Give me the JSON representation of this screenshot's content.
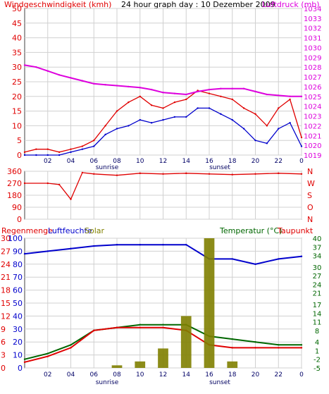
{
  "header": {
    "title_left": "Windgeschwindigkeit (kmh)",
    "title_center": "24 hour graph day : 10 Dezember 2009",
    "title_right": "Luftdruck (mb)"
  },
  "colors": {
    "background": "#ffffff",
    "frame": "#404040",
    "grid": "#d0d0d0",
    "red": "#e00000",
    "blue": "#0000cc",
    "magenta": "#dd00dd",
    "green": "#006600",
    "olive": "#808000"
  },
  "chart_data": [
    {
      "type": "line",
      "name": "wind-pressure",
      "ylim_left": [
        0,
        50
      ],
      "yticks_left": [
        "0",
        "5",
        "10",
        "15",
        "20",
        "25",
        "30",
        "35",
        "40",
        "45",
        "50"
      ],
      "ylim_right": [
        1019,
        1034
      ],
      "yticks_right": [
        "1019",
        "1020",
        "1021",
        "1022",
        "1023",
        "1024",
        "1025",
        "1026",
        "1027",
        "1028",
        "1029",
        "1030",
        "1031",
        "1032",
        "1033",
        "1034"
      ],
      "xticks": [
        "02",
        "04",
        "06",
        "08",
        "10",
        "12",
        "14",
        "16",
        "18",
        "20",
        "22",
        "0"
      ],
      "annotations": [
        "sunrise",
        "sunset"
      ],
      "x": [
        0,
        1,
        2,
        3,
        4,
        5,
        6,
        7,
        8,
        9,
        10,
        11,
        12,
        13,
        14,
        15,
        16,
        17,
        18,
        19,
        20,
        21,
        22,
        23,
        24
      ],
      "series": [
        {
          "color": "red",
          "axis": "left",
          "values": [
            1,
            2,
            2,
            1,
            2,
            3,
            5,
            10,
            15,
            18,
            20,
            17,
            16,
            18,
            19,
            22,
            21,
            20,
            19,
            16,
            14,
            10,
            16,
            19,
            6
          ]
        },
        {
          "color": "blue",
          "axis": "left",
          "values": [
            0,
            0,
            0,
            0,
            1,
            2,
            3,
            7,
            9,
            10,
            12,
            11,
            12,
            13,
            13,
            16,
            16,
            14,
            12,
            9,
            5,
            4,
            9,
            11,
            3
          ]
        },
        {
          "color": "magenta",
          "axis": "right",
          "values": [
            1028.2,
            1028.0,
            1027.6,
            1027.2,
            1026.9,
            1026.6,
            1026.3,
            1026.2,
            1026.1,
            1026.0,
            1025.9,
            1025.7,
            1025.4,
            1025.3,
            1025.2,
            1025.5,
            1025.7,
            1025.8,
            1025.8,
            1025.8,
            1025.5,
            1025.2,
            1025.1,
            1025.0,
            1025.0
          ]
        }
      ]
    },
    {
      "type": "line",
      "name": "wind-direction",
      "ylim": [
        0,
        360
      ],
      "yticks": [
        "0",
        "90",
        "180",
        "270",
        "360"
      ],
      "yticks_right": [
        "N",
        "O",
        "S",
        "W",
        "N"
      ],
      "x": [
        0,
        2,
        3,
        4,
        5,
        6,
        8,
        10,
        12,
        14,
        16,
        18,
        20,
        22,
        24
      ],
      "series": [
        {
          "color": "red",
          "values": [
            270,
            270,
            260,
            150,
            350,
            340,
            330,
            345,
            340,
            345,
            340,
            335,
            340,
            345,
            340
          ]
        }
      ]
    },
    {
      "type": "line",
      "name": "rain-humidity-solar-temperature",
      "labels": {
        "left": [
          "Regenmenge",
          "Luftfeuchte",
          "Solar"
        ],
        "right": [
          "Temperatur (°C)",
          "Taupunkt"
        ]
      },
      "ylim_left": [
        0,
        100
      ],
      "yticks_left_a": [
        "0",
        "3",
        "6",
        "9",
        "12",
        "15",
        "18",
        "21",
        "24",
        "27",
        "30"
      ],
      "yticks_left_b": [
        "0",
        "10",
        "20",
        "30",
        "40",
        "50",
        "60",
        "70",
        "80",
        "90",
        "100"
      ],
      "ylim_right": [
        -5,
        40
      ],
      "yticks_right": [
        "-5",
        "-2",
        "1",
        "4",
        "8",
        "11",
        "14",
        "17",
        "21",
        "24",
        "27",
        "30",
        "34",
        "37",
        "40"
      ],
      "xticks": [
        "02",
        "04",
        "06",
        "08",
        "10",
        "12",
        "14",
        "16",
        "18",
        "20",
        "22",
        "0"
      ],
      "annotations": [
        "sunrise",
        "sunset"
      ],
      "x": [
        0,
        2,
        4,
        6,
        8,
        10,
        12,
        14,
        16,
        18,
        20,
        22,
        24
      ],
      "series": [
        {
          "color": "blue",
          "axis": "left_b",
          "values": [
            88,
            90,
            92,
            94,
            95,
            95,
            95,
            95,
            84,
            84,
            80,
            84,
            86
          ]
        },
        {
          "color": "green",
          "axis": "right",
          "values": [
            -2,
            0,
            3,
            8,
            9,
            10,
            10,
            10,
            6,
            5,
            4,
            3,
            3
          ]
        },
        {
          "color": "red",
          "axis": "right",
          "values": [
            -3,
            -1,
            2,
            8,
            9,
            9,
            9,
            8,
            3,
            2,
            2,
            2,
            2
          ]
        },
        {
          "color": "olive",
          "axis": "left_b",
          "values": [
            0,
            0,
            0,
            0,
            2,
            5,
            15,
            40,
            100,
            5,
            0,
            0,
            0
          ]
        }
      ]
    }
  ]
}
